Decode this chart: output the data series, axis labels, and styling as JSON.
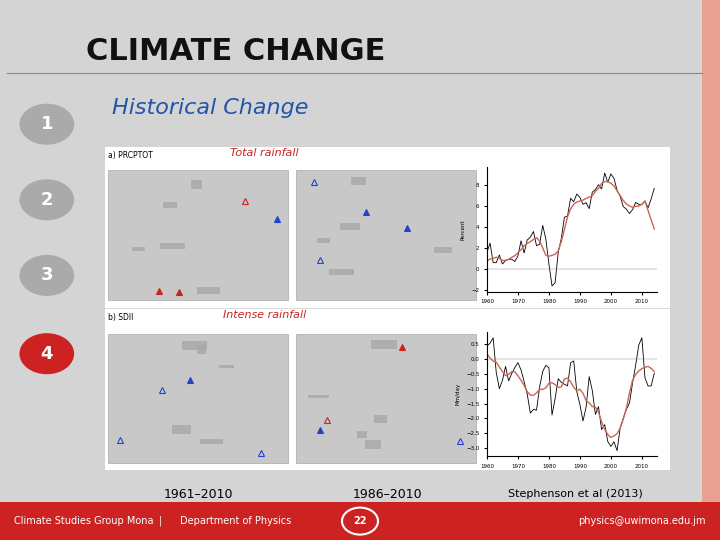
{
  "bg_color": "#d4d4d4",
  "title": "CLIMATE CHANGE",
  "title_font_size": 22,
  "subtitle": "Historical Change",
  "subtitle_color": "#2255aa",
  "subtitle_font_size": 16,
  "bullet_numbers": [
    "1",
    "2",
    "3",
    "4"
  ],
  "bullet_colors": [
    "#aaaaaa",
    "#aaaaaa",
    "#aaaaaa",
    "#cc2222"
  ],
  "label_total": "Total rainfall",
  "label_intense": "Intense rainfall",
  "label_total_color": "#cc2222",
  "label_intense_color": "#cc2222",
  "caption_1961": "1961–2010",
  "caption_1986": "1986–2010",
  "caption_ref": "Stephenson et al (2013)",
  "footer_bg": "#cc2222",
  "footer_left": "Climate Studies Group Mona",
  "footer_sep": "|",
  "footer_mid": "Department of Physics",
  "footer_num": "22",
  "footer_right": "physics@uwimona.edu.jm",
  "right_stripe_color": "#e8a090",
  "image_box_color": "#ffffff"
}
